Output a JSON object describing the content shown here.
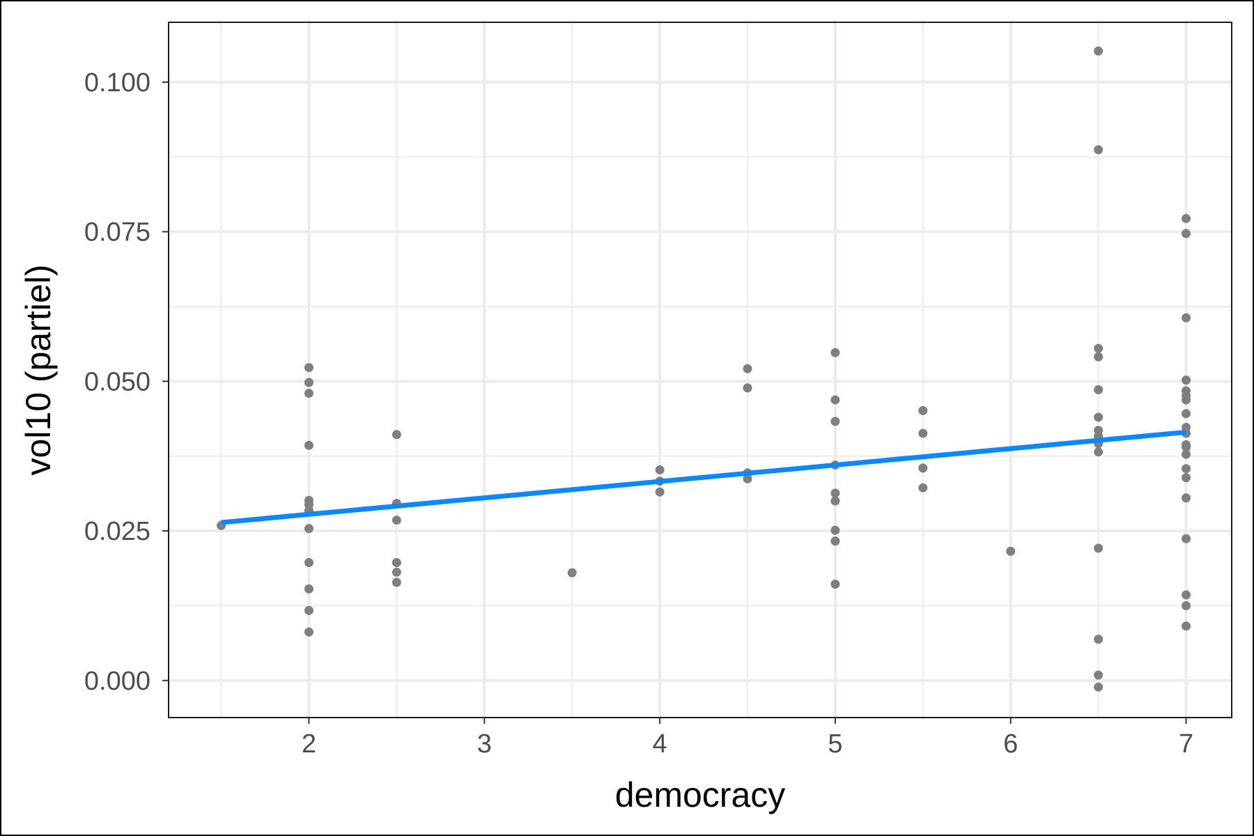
{
  "chart_data": {
    "type": "scatter",
    "title": "",
    "xlabel": "democracy",
    "ylabel": "vol10 (partiel)",
    "xlim": [
      1.2,
      7.26
    ],
    "ylim": [
      -0.0062,
      0.11
    ],
    "x_ticks": [
      2,
      3,
      4,
      5,
      6,
      7
    ],
    "x_tick_labels": [
      "2",
      "3",
      "4",
      "5",
      "6",
      "7"
    ],
    "x_minor_ticks": [
      1.5,
      2.5,
      3.5,
      4.5,
      5.5,
      6.5
    ],
    "y_ticks": [
      0.0,
      0.025,
      0.05,
      0.075,
      0.1
    ],
    "y_tick_labels": [
      "0.000",
      "0.025",
      "0.050",
      "0.075",
      "0.100"
    ],
    "y_minor_ticks": [
      0.0125,
      0.0375,
      0.0625,
      0.0875
    ],
    "grid": true,
    "legend": "none",
    "colors": {
      "points": "#7f7f7f",
      "fit_line": "#0b88ff",
      "grid": "#ebebeb",
      "panel_border": "#1a1a1a"
    },
    "points": [
      [
        1.5,
        0.0259
      ],
      [
        2,
        0.0523
      ],
      [
        2,
        0.0498
      ],
      [
        2,
        0.048
      ],
      [
        2,
        0.0393
      ],
      [
        2,
        0.0301
      ],
      [
        2,
        0.0294
      ],
      [
        2,
        0.0284
      ],
      [
        2,
        0.0254
      ],
      [
        2,
        0.0197
      ],
      [
        2,
        0.0153
      ],
      [
        2,
        0.0117
      ],
      [
        2,
        0.0081
      ],
      [
        2.5,
        0.0411
      ],
      [
        2.5,
        0.0296
      ],
      [
        2.5,
        0.0268
      ],
      [
        2.5,
        0.0197
      ],
      [
        2.5,
        0.0181
      ],
      [
        2.5,
        0.0164
      ],
      [
        3.5,
        0.018
      ],
      [
        4,
        0.0352
      ],
      [
        4,
        0.0333
      ],
      [
        4,
        0.0315
      ],
      [
        4.5,
        0.0521
      ],
      [
        4.5,
        0.0489
      ],
      [
        4.5,
        0.0347
      ],
      [
        4.5,
        0.0337
      ],
      [
        5,
        0.0548
      ],
      [
        5,
        0.0469
      ],
      [
        5,
        0.0433
      ],
      [
        5,
        0.036
      ],
      [
        5,
        0.0313
      ],
      [
        5,
        0.03
      ],
      [
        5,
        0.0251
      ],
      [
        5,
        0.0233
      ],
      [
        5,
        0.0161
      ],
      [
        5.5,
        0.0451
      ],
      [
        5.5,
        0.0413
      ],
      [
        5.5,
        0.0355
      ],
      [
        5.5,
        0.0322
      ],
      [
        6,
        0.0216
      ],
      [
        6.5,
        0.1052
      ],
      [
        6.5,
        0.0887
      ],
      [
        6.5,
        0.0555
      ],
      [
        6.5,
        0.0541
      ],
      [
        6.5,
        0.0486
      ],
      [
        6.5,
        0.044
      ],
      [
        6.5,
        0.0418
      ],
      [
        6.5,
        0.0408
      ],
      [
        6.5,
        0.0396
      ],
      [
        6.5,
        0.0382
      ],
      [
        6.5,
        0.0221
      ],
      [
        6.5,
        0.0069
      ],
      [
        6.5,
        0.0009
      ],
      [
        6.5,
        -0.0011
      ],
      [
        7,
        0.0772
      ],
      [
        7,
        0.0747
      ],
      [
        7,
        0.0606
      ],
      [
        7,
        0.0502
      ],
      [
        7,
        0.0484
      ],
      [
        7,
        0.0476
      ],
      [
        7,
        0.0469
      ],
      [
        7,
        0.0446
      ],
      [
        7,
        0.0423
      ],
      [
        7,
        0.0413
      ],
      [
        7,
        0.0394
      ],
      [
        7,
        0.039
      ],
      [
        7,
        0.0378
      ],
      [
        7,
        0.0354
      ],
      [
        7,
        0.0339
      ],
      [
        7,
        0.0305
      ],
      [
        7,
        0.0237
      ],
      [
        7,
        0.0143
      ],
      [
        7,
        0.0125
      ],
      [
        7,
        0.0091
      ]
    ],
    "fit_line": {
      "x": [
        1.5,
        7
      ],
      "y": [
        0.0264,
        0.0415
      ]
    }
  }
}
